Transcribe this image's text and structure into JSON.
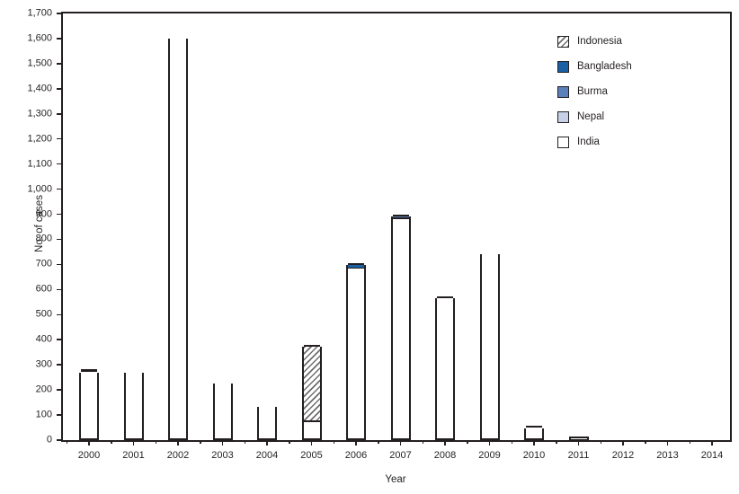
{
  "figure": {
    "ylabel": "No. of cases",
    "xlabel": "Year"
  },
  "colors": {
    "ink": "#231f20",
    "bangladesh": "#1b5fa5",
    "burma": "#5b80ba",
    "nepal": "#c7d0e6",
    "india": "#ffffff",
    "hatch_stripe": "#6e6e6e",
    "background": "#ffffff"
  },
  "chart_data": {
    "type": "bar",
    "stacked": true,
    "title": "",
    "xlabel": "Year",
    "ylabel": "No. of cases",
    "ylim": [
      0,
      1700
    ],
    "ytick_step": 100,
    "grid": false,
    "legend_position": "top-right",
    "categories": [
      "2000",
      "2001",
      "2002",
      "2003",
      "2004",
      "2005",
      "2006",
      "2007",
      "2008",
      "2009",
      "2010",
      "2011",
      "2012",
      "2013",
      "2014"
    ],
    "series": [
      {
        "name": "Indonesia",
        "fill": "hatch",
        "values": [
          0,
          0,
          0,
          0,
          0,
          303,
          0,
          0,
          0,
          0,
          0,
          0,
          0,
          0,
          0
        ]
      },
      {
        "name": "Bangladesh",
        "fill": "#1b5fa5",
        "values": [
          1,
          0,
          0,
          0,
          0,
          0,
          18,
          0,
          0,
          0,
          0,
          0,
          0,
          0,
          0
        ]
      },
      {
        "name": "Burma",
        "fill": "#5b80ba",
        "values": [
          0,
          0,
          0,
          0,
          0,
          0,
          0,
          11,
          0,
          0,
          0,
          0,
          0,
          0,
          0
        ]
      },
      {
        "name": "Nepal",
        "fill": "#c7d0e6",
        "values": [
          4,
          0,
          0,
          0,
          0,
          4,
          5,
          5,
          6,
          0,
          6,
          0,
          0,
          0,
          0
        ]
      },
      {
        "name": "India",
        "fill": "#ffffff",
        "values": [
          265,
          268,
          1600,
          225,
          134,
          66,
          676,
          874,
          559,
          741,
          42,
          1,
          0,
          0,
          0
        ]
      }
    ],
    "totals": [
      270,
      268,
      1600,
      225,
      134,
      373,
      699,
      890,
      565,
      741,
      48,
      1,
      0,
      0,
      0
    ]
  }
}
